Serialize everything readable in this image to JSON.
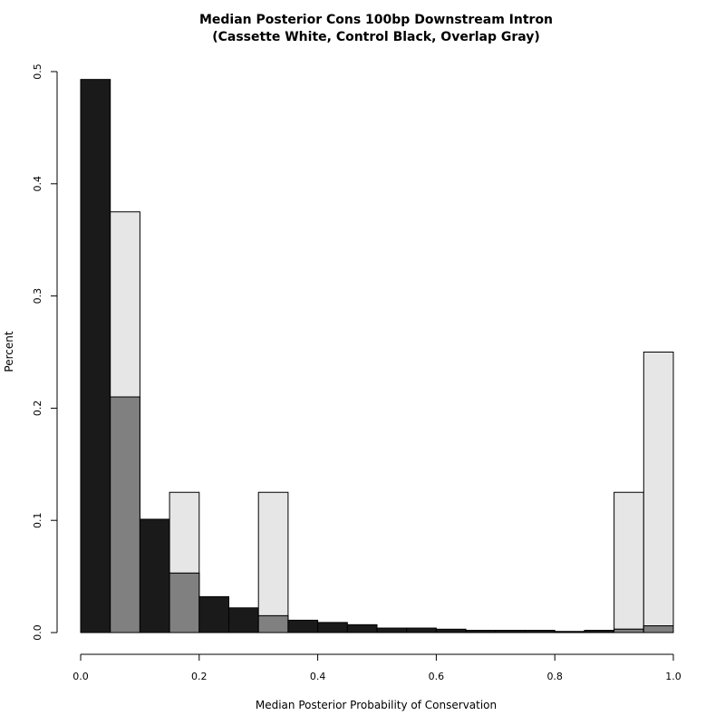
{
  "chart_data": {
    "type": "bar",
    "title": "Median Posterior Cons 100bp Downstream Intron",
    "subtitle": "(Cassette White, Control Black, Overlap Gray)",
    "xlabel": "Median Posterior Probability of Conservation",
    "ylabel": "Percent",
    "xlim": [
      0,
      1
    ],
    "ylim": [
      0,
      0.5
    ],
    "x_ticks": [
      "0.0",
      "0.2",
      "0.4",
      "0.6",
      "0.8",
      "1.0"
    ],
    "y_ticks": [
      "0.0",
      "0.1",
      "0.2",
      "0.3",
      "0.4",
      "0.5"
    ],
    "bin_width": 0.05,
    "bins": [
      0.0,
      0.05,
      0.1,
      0.15,
      0.2,
      0.25,
      0.3,
      0.35,
      0.4,
      0.45,
      0.5,
      0.55,
      0.6,
      0.65,
      0.7,
      0.75,
      0.8,
      0.85,
      0.9,
      0.95
    ],
    "series": [
      {
        "name": "Cassette",
        "color": "#e6e6e6",
        "values": [
          0.0,
          0.375,
          0.0,
          0.125,
          0.0,
          0.0,
          0.125,
          0.0,
          0.0,
          0.0,
          0.0,
          0.0,
          0.0,
          0.0,
          0.0,
          0.0,
          0.0,
          0.0,
          0.125,
          0.25
        ]
      },
      {
        "name": "Control",
        "color": "#1a1a1a",
        "values": [
          0.493,
          0.21,
          0.101,
          0.053,
          0.032,
          0.022,
          0.015,
          0.011,
          0.009,
          0.007,
          0.004,
          0.004,
          0.003,
          0.002,
          0.002,
          0.002,
          0.001,
          0.002,
          0.003,
          0.006
        ]
      }
    ],
    "overlap_color": "#808080",
    "grid": false
  }
}
